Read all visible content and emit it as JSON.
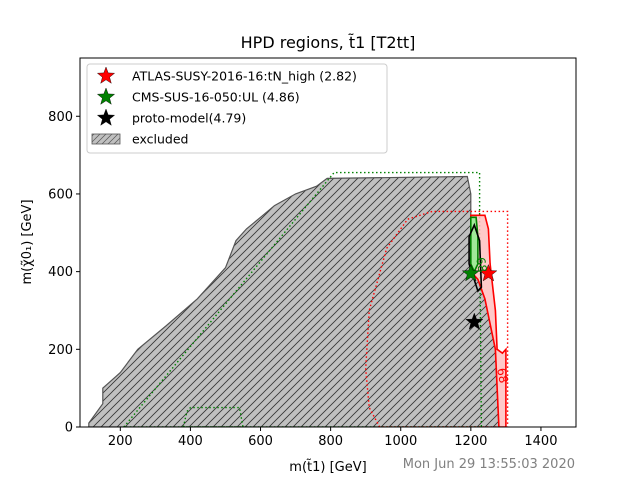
{
  "chart_data": {
    "type": "area",
    "title": "HPD regions, t̃1 [T2tt]",
    "xlabel": "m(t̃1) [GeV]",
    "ylabel": "m(χ̃0₁) [GeV]",
    "xlim": [
      85,
      1500
    ],
    "ylim": [
      0,
      950
    ],
    "xticks": [
      200,
      400,
      600,
      800,
      1000,
      1200,
      1400
    ],
    "yticks": [
      0,
      200,
      400,
      600,
      800
    ],
    "grid": false,
    "legend_position": "top-left",
    "legend": [
      {
        "label": "ATLAS-SUSY-2016-16:tN_high (2.82)",
        "marker": "star",
        "color": "#ff0000"
      },
      {
        "label": "CMS-SUS-16-050:UL (4.86)",
        "marker": "star",
        "color": "#008000"
      },
      {
        "label": "proto-model(4.79)",
        "marker": "star",
        "color": "#000000"
      },
      {
        "label": "excluded",
        "marker": "hatched-patch",
        "color": "#c0c0c0"
      }
    ],
    "excluded_region": {
      "color": "#c0c0c0",
      "edge_color": "#555555",
      "polygon": [
        [
          110,
          0
        ],
        [
          110,
          10
        ],
        [
          150,
          60
        ],
        [
          150,
          100
        ],
        [
          200,
          140
        ],
        [
          250,
          200
        ],
        [
          330,
          260
        ],
        [
          420,
          330
        ],
        [
          500,
          410
        ],
        [
          530,
          480
        ],
        [
          560,
          510
        ],
        [
          600,
          540
        ],
        [
          640,
          570
        ],
        [
          700,
          600
        ],
        [
          760,
          620
        ],
        [
          790,
          640
        ],
        [
          1190,
          645
        ],
        [
          1200,
          600
        ],
        [
          1200,
          400
        ],
        [
          1220,
          380
        ],
        [
          1240,
          330
        ],
        [
          1270,
          200
        ],
        [
          1280,
          0
        ]
      ]
    },
    "series": [
      {
        "name": "CMS-SUS-16-050:UL",
        "color": "#008000",
        "style": "dotted",
        "polygon": [
          [
            210,
            0
          ],
          [
            810,
            655
          ],
          [
            1225,
            655
          ],
          [
            1225,
            500
          ],
          [
            1230,
            0
          ]
        ]
      },
      {
        "color": "#008000",
        "style": "dotted",
        "polygon": [
          [
            380,
            0
          ],
          [
            390,
            40
          ],
          [
            400,
            50
          ],
          [
            540,
            50
          ],
          [
            550,
            0
          ]
        ]
      },
      {
        "name": "ATLAS-SUSY-2016-16:tN_high",
        "color": "#ff0000",
        "style": "dotted",
        "polygon": [
          [
            940,
            0
          ],
          [
            910,
            50
          ],
          [
            900,
            150
          ],
          [
            910,
            300
          ],
          [
            960,
            460
          ],
          [
            1020,
            535
          ],
          [
            1090,
            555
          ],
          [
            1305,
            555
          ],
          [
            1305,
            0
          ]
        ]
      },
      {
        "name": "ATLAS-SUSY-2016-16:tN_high 68%",
        "color": "#ff0000",
        "style": "solid",
        "fill": "#ffc0c0",
        "polygon": [
          [
            1200,
            545
          ],
          [
            1240,
            545
          ],
          [
            1250,
            510
          ],
          [
            1255,
            420
          ],
          [
            1270,
            300
          ],
          [
            1275,
            200
          ],
          [
            1290,
            190
          ],
          [
            1300,
            200
          ],
          [
            1300,
            0
          ],
          [
            1280,
            0
          ],
          [
            1270,
            200
          ],
          [
            1240,
            330
          ],
          [
            1220,
            380
          ],
          [
            1200,
            400
          ]
        ]
      },
      {
        "name": "CMS-SUS-16-050:UL 68%",
        "color": "#008000",
        "style": "solid",
        "fill": "#90ee90",
        "polygon": [
          [
            1200,
            540
          ],
          [
            1215,
            540
          ],
          [
            1220,
            490
          ],
          [
            1220,
            420
          ],
          [
            1210,
            400
          ],
          [
            1200,
            420
          ]
        ]
      },
      {
        "name": "proto-model 68%",
        "color": "#000000",
        "style": "solid",
        "polygon": [
          [
            1195,
            490
          ],
          [
            1210,
            520
          ],
          [
            1225,
            480
          ],
          [
            1230,
            360
          ],
          [
            1220,
            350
          ],
          [
            1195,
            420
          ]
        ]
      }
    ],
    "points": [
      {
        "name": "ATLAS-SUSY-2016-16:tN_high",
        "x": 1250,
        "y": 395,
        "color": "#ff0000"
      },
      {
        "name": "CMS-SUS-16-050:UL",
        "x": 1200,
        "y": 395,
        "color": "#008000"
      },
      {
        "name": "proto-model",
        "x": 1210,
        "y": 270,
        "color": "#000000"
      }
    ],
    "annotations": [
      {
        "text": "68",
        "x": 1275,
        "y": 150,
        "color": "#ff0000",
        "rotation": 80
      },
      {
        "text": "68",
        "x": 1215,
        "y": 435,
        "color": "#008000",
        "rotation": 80
      }
    ]
  },
  "timestamp": "Mon Jun 29 13:55:03 2020"
}
